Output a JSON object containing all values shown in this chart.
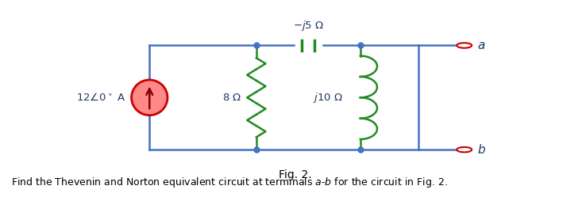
{
  "bg_color": "#ffffff",
  "wire_color": "#4472C4",
  "comp_color": "#228B22",
  "source_edge_color": "#CC0000",
  "source_fill": "#FF8888",
  "terminal_color": "#CC0000",
  "label_color": "#1F3864",
  "fig_label": "Fig. 2.",
  "bottom_text": "Find the Thevenin and Norton equivalent circuit at terminals $a$-$b$ for the circuit in Fig. 2.",
  "source_label": "$12\\angle 0^\\circ$ A",
  "r_label": "$8\\ \\Omega$",
  "c_label": "$-j5\\ \\Omega$",
  "l_label": "$j10\\ \\Omega$",
  "terminal_a": "$a$",
  "terminal_b": "$b$",
  "L": 0.255,
  "R": 0.72,
  "T": 0.78,
  "B": 0.25,
  "M1": 0.44,
  "M2": 0.62,
  "terminal_ext": 0.08
}
